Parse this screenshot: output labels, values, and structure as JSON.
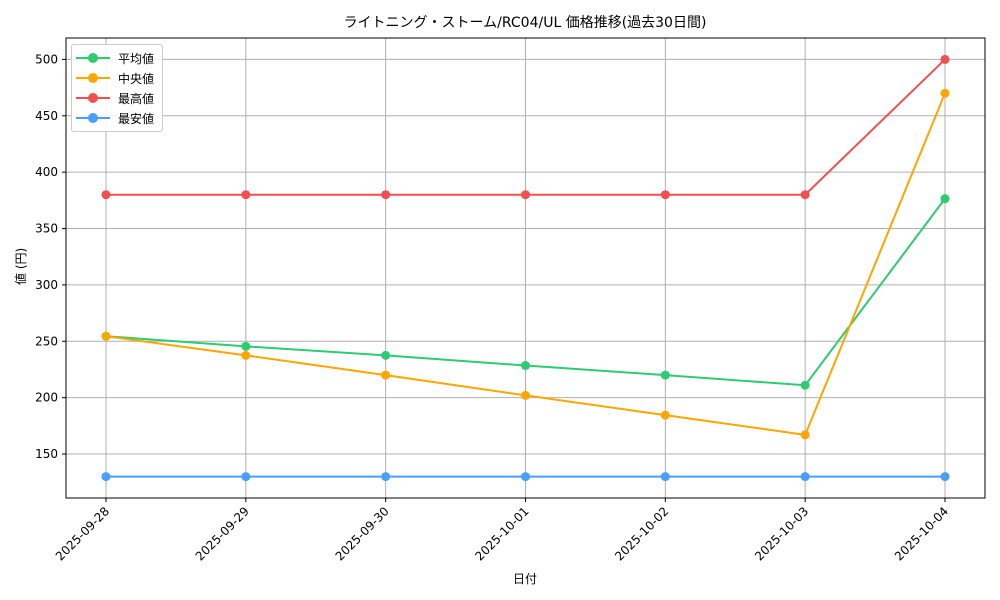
{
  "chart_data": {
    "type": "line",
    "title": "ライトニング・ストーム/RC04/UL 価格推移(過去30日間)",
    "xlabel": "日付",
    "ylabel": "値 (円)",
    "categories": [
      "2025-09-28",
      "2025-09-29",
      "2025-09-30",
      "2025-10-01",
      "2025-10-02",
      "2025-10-03",
      "2025-10-04"
    ],
    "series": [
      {
        "name": "平均値",
        "color": "#2ecc71",
        "values": [
          254.5,
          245.5,
          237.5,
          228.5,
          220,
          211,
          376.5
        ]
      },
      {
        "name": "中央値",
        "color": "#ffa500",
        "values": [
          254.5,
          237.5,
          220,
          202,
          184.5,
          167,
          470
        ]
      },
      {
        "name": "最高値",
        "color": "#f05050",
        "values": [
          380,
          380,
          380,
          380,
          380,
          380,
          500
        ]
      },
      {
        "name": "最安値",
        "color": "#4a9eff",
        "values": [
          130,
          130,
          130,
          130,
          130,
          130,
          130
        ]
      }
    ],
    "yticks": [
      150,
      200,
      250,
      300,
      350,
      400,
      450,
      500
    ],
    "ylim": [
      111,
      519
    ],
    "grid": true,
    "legend_position": "upper left",
    "x_tick_rotation": 45
  }
}
